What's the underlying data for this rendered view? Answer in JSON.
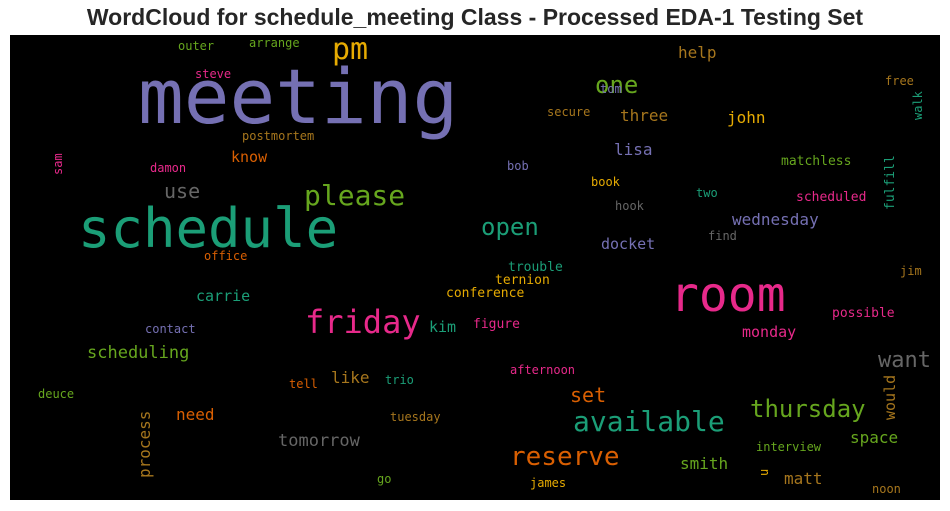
{
  "chart_data": {
    "type": "wordcloud",
    "title": "WordCloud for schedule_meeting Class - Processed EDA-1 Testing Set",
    "background": "#000000",
    "palette": [
      "#7570b3",
      "#1b9e77",
      "#e7298a",
      "#d95f02",
      "#66a61e",
      "#e6ab02",
      "#a6761d",
      "#666666"
    ],
    "words": [
      {
        "text": "meeting",
        "color": "#7570b3"
      },
      {
        "text": "schedule",
        "color": "#1b9e77"
      },
      {
        "text": "room",
        "color": "#e7298a"
      },
      {
        "text": "friday",
        "color": "#e7298a"
      },
      {
        "text": "please",
        "color": "#66a61e"
      },
      {
        "text": "available",
        "color": "#1b9e77"
      },
      {
        "text": "reserve",
        "color": "#d95f02"
      },
      {
        "text": "pm",
        "color": "#e6ab02"
      },
      {
        "text": "thursday",
        "color": "#66a61e"
      },
      {
        "text": "one",
        "color": "#66a61e"
      },
      {
        "text": "open",
        "color": "#1b9e77"
      },
      {
        "text": "want",
        "color": "#666666"
      },
      {
        "text": "use",
        "color": "#666666"
      },
      {
        "text": "set",
        "color": "#d95f02"
      },
      {
        "text": "wednesday",
        "color": "#7570b3"
      },
      {
        "text": "scheduling",
        "color": "#66a61e"
      },
      {
        "text": "process",
        "color": "#a6761d"
      },
      {
        "text": "tomorrow",
        "color": "#666666"
      },
      {
        "text": "help",
        "color": "#a6761d"
      },
      {
        "text": "lisa",
        "color": "#7570b3"
      },
      {
        "text": "three",
        "color": "#a6761d"
      },
      {
        "text": "john",
        "color": "#e6ab02"
      },
      {
        "text": "know",
        "color": "#d95f02"
      },
      {
        "text": "docket",
        "color": "#7570b3"
      },
      {
        "text": "carrie",
        "color": "#1b9e77"
      },
      {
        "text": "kim",
        "color": "#1b9e77"
      },
      {
        "text": "monday",
        "color": "#e7298a"
      },
      {
        "text": "like",
        "color": "#a6761d"
      },
      {
        "text": "need",
        "color": "#d95f02"
      },
      {
        "text": "smith",
        "color": "#66a61e"
      },
      {
        "text": "space",
        "color": "#66a61e"
      },
      {
        "text": "would",
        "color": "#a6761d"
      },
      {
        "text": "matt",
        "color": "#a6761d"
      },
      {
        "text": "conference",
        "color": "#e6ab02"
      },
      {
        "text": "ternion",
        "color": "#e6ab02"
      },
      {
        "text": "trouble",
        "color": "#1b9e77"
      },
      {
        "text": "figure",
        "color": "#e7298a"
      },
      {
        "text": "possible",
        "color": "#e7298a"
      },
      {
        "text": "matchless",
        "color": "#66a61e"
      },
      {
        "text": "scheduled",
        "color": "#e7298a"
      },
      {
        "text": "fulfill",
        "color": "#1b9e77"
      },
      {
        "text": "walk",
        "color": "#1b9e77"
      },
      {
        "text": "free",
        "color": "#a6761d"
      },
      {
        "text": "tom",
        "color": "#7570b3"
      },
      {
        "text": "secure",
        "color": "#a6761d"
      },
      {
        "text": "bob",
        "color": "#7570b3"
      },
      {
        "text": "book",
        "color": "#e6ab02"
      },
      {
        "text": "two",
        "color": "#1b9e77"
      },
      {
        "text": "hook",
        "color": "#666666"
      },
      {
        "text": "find",
        "color": "#666666"
      },
      {
        "text": "jim",
        "color": "#a6761d"
      },
      {
        "text": "outer",
        "color": "#66a61e"
      },
      {
        "text": "arrange",
        "color": "#66a61e"
      },
      {
        "text": "steve",
        "color": "#e7298a"
      },
      {
        "text": "postmortem",
        "color": "#a6761d"
      },
      {
        "text": "sam",
        "color": "#e7298a"
      },
      {
        "text": "damon",
        "color": "#e7298a"
      },
      {
        "text": "office",
        "color": "#d95f02"
      },
      {
        "text": "contact",
        "color": "#7570b3"
      },
      {
        "text": "deuce",
        "color": "#66a61e"
      },
      {
        "text": "tell",
        "color": "#d95f02"
      },
      {
        "text": "trio",
        "color": "#1b9e77"
      },
      {
        "text": "afternoon",
        "color": "#e7298a"
      },
      {
        "text": "tuesday",
        "color": "#a6761d"
      },
      {
        "text": "go",
        "color": "#66a61e"
      },
      {
        "text": "james",
        "color": "#e6ab02"
      },
      {
        "text": "interview",
        "color": "#66a61e"
      },
      {
        "text": "u",
        "color": "#e6ab02"
      },
      {
        "text": "noon",
        "color": "#a6761d"
      }
    ]
  }
}
